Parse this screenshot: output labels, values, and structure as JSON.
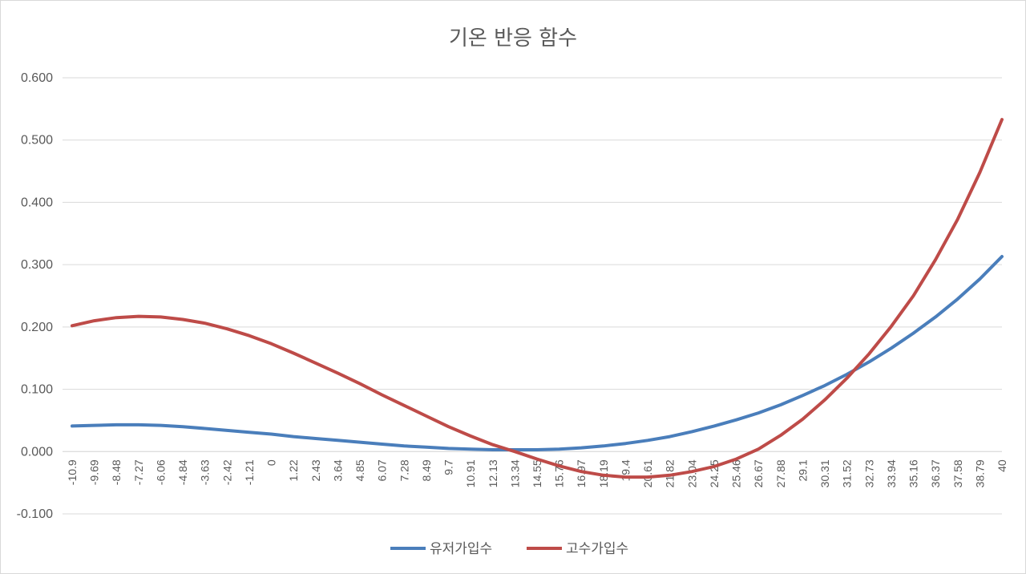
{
  "chart_data": {
    "type": "line",
    "title": "기온 반응 함수",
    "xlabel": "",
    "ylabel": "",
    "ylim": [
      -0.1,
      0.6
    ],
    "yticks": [
      "-0.100",
      "0.000",
      "0.100",
      "0.200",
      "0.300",
      "0.400",
      "0.500",
      "0.600"
    ],
    "xticks": [
      "-10.9",
      "-9.69",
      "-8.48",
      "-7.27",
      "-6.06",
      "-4.84",
      "-3.63",
      "-2.42",
      "-1.21",
      "0",
      "1.22",
      "2.43",
      "3.64",
      "4.85",
      "6.07",
      "7.28",
      "8.49",
      "9.7",
      "10.91",
      "12.13",
      "13.34",
      "14.55",
      "15.76",
      "16.97",
      "18.19",
      "19.4",
      "20.61",
      "21.82",
      "23.04",
      "24.25",
      "25.46",
      "26.67",
      "27.88",
      "29.1",
      "30.31",
      "31.52",
      "32.73",
      "33.94",
      "35.16",
      "36.37",
      "37.58",
      "38.79",
      "40"
    ],
    "grid": true,
    "legend_position": "bottom",
    "x": [
      -10.9,
      -9.69,
      -8.48,
      -7.27,
      -6.06,
      -4.84,
      -3.63,
      -2.42,
      -1.21,
      0,
      1.22,
      2.43,
      3.64,
      4.85,
      6.07,
      7.28,
      8.49,
      9.7,
      10.91,
      12.13,
      13.34,
      14.55,
      15.76,
      16.97,
      18.19,
      19.4,
      20.61,
      21.82,
      23.04,
      24.25,
      25.46,
      26.67,
      27.88,
      29.1,
      30.31,
      31.52,
      32.73,
      33.94,
      35.16,
      36.37,
      37.58,
      38.79,
      40
    ],
    "series": [
      {
        "name": "유저가입수",
        "color": "#4a7ebb",
        "values": [
          0.041,
          0.042,
          0.043,
          0.043,
          0.042,
          0.04,
          0.037,
          0.034,
          0.031,
          0.028,
          0.024,
          0.021,
          0.018,
          0.015,
          0.012,
          0.009,
          0.007,
          0.005,
          0.004,
          0.003,
          0.003,
          0.003,
          0.004,
          0.006,
          0.009,
          0.013,
          0.018,
          0.024,
          0.032,
          0.041,
          0.051,
          0.062,
          0.075,
          0.09,
          0.106,
          0.124,
          0.144,
          0.166,
          0.19,
          0.216,
          0.245,
          0.277,
          0.313
        ]
      },
      {
        "name": "고수가입수",
        "color": "#be4b48",
        "values": [
          0.202,
          0.21,
          0.215,
          0.217,
          0.216,
          0.212,
          0.206,
          0.197,
          0.186,
          0.173,
          0.158,
          0.142,
          0.126,
          0.109,
          0.091,
          0.074,
          0.057,
          0.04,
          0.025,
          0.011,
          0.0,
          -0.012,
          -0.023,
          -0.032,
          -0.038,
          -0.041,
          -0.041,
          -0.038,
          -0.032,
          -0.024,
          -0.012,
          0.004,
          0.026,
          0.052,
          0.083,
          0.118,
          0.157,
          0.201,
          0.25,
          0.308,
          0.373,
          0.448,
          0.533
        ]
      }
    ]
  }
}
